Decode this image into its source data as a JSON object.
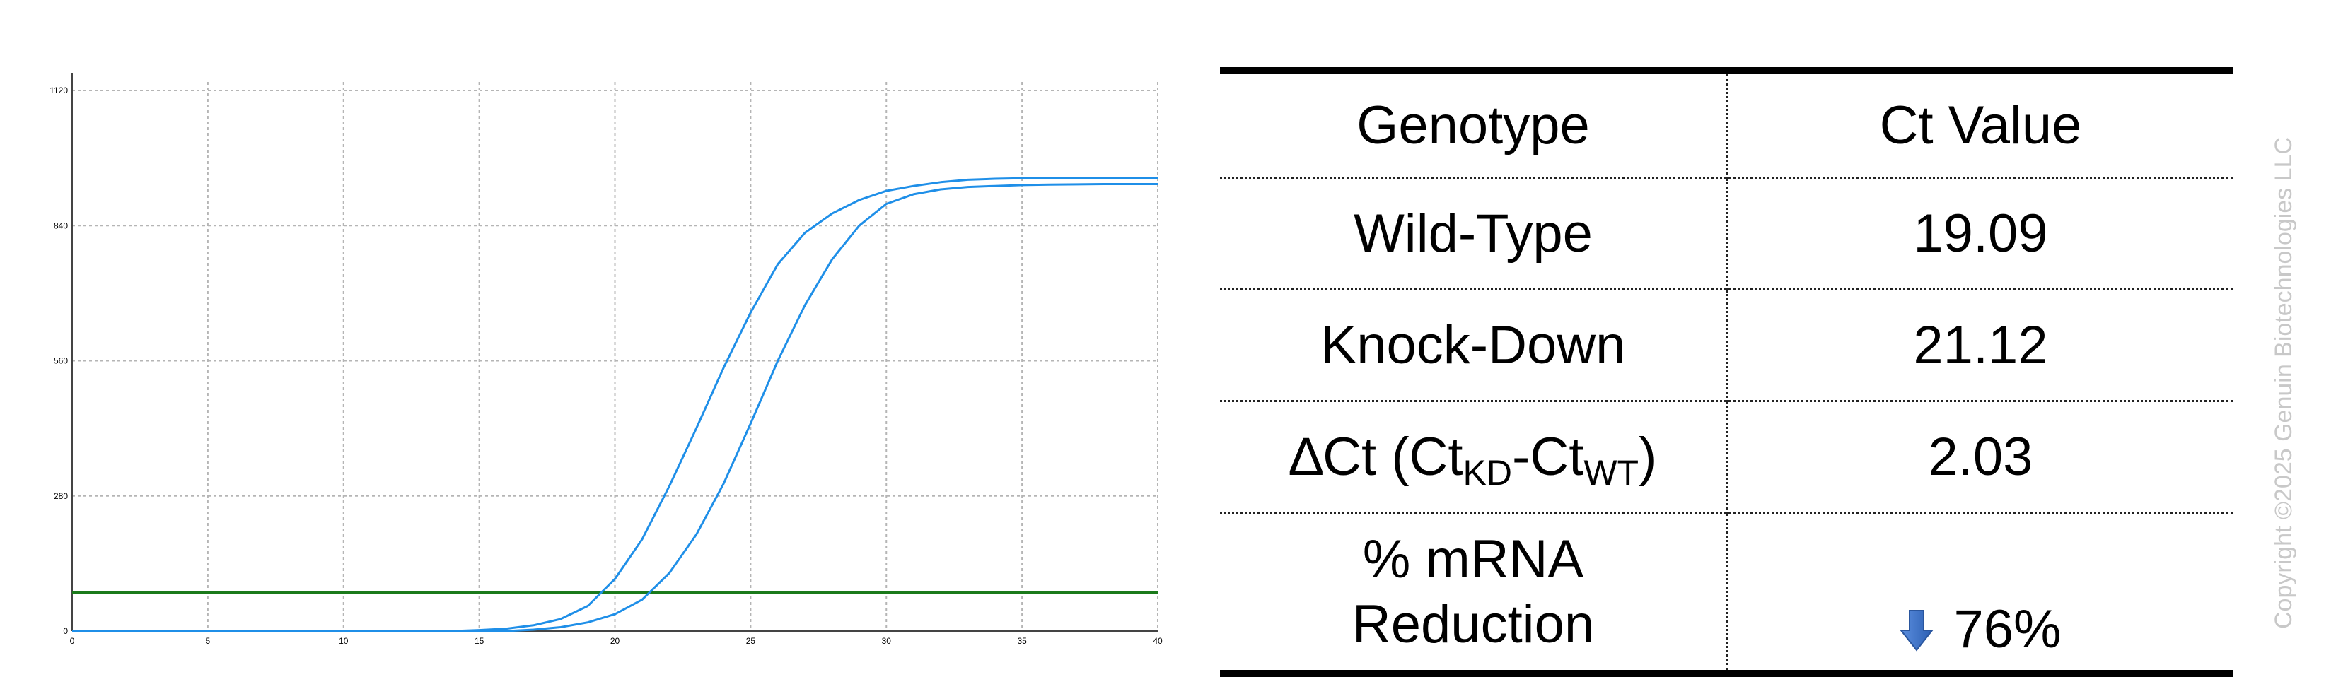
{
  "chart_data": {
    "type": "line",
    "xlim": [
      0,
      40
    ],
    "ylim": [
      0,
      1120
    ],
    "x_ticks": [
      "0",
      "5",
      "10",
      "15",
      "20",
      "25",
      "30",
      "35",
      "40"
    ],
    "y_ticks": [
      "0",
      "280",
      "560",
      "840",
      "1120"
    ],
    "grid": true,
    "threshold": 80,
    "series": [
      {
        "color": "#1f8fe8",
        "x": [
          0,
          14,
          15,
          16,
          17,
          18,
          19,
          20,
          21,
          22,
          23,
          24,
          25,
          26,
          27,
          28,
          29,
          30,
          31,
          32,
          33,
          34,
          35,
          36,
          40
        ],
        "y": [
          0,
          0,
          2,
          5,
          12,
          25,
          52,
          108,
          190,
          300,
          420,
          545,
          660,
          760,
          825,
          865,
          893,
          912,
          922,
          930,
          935,
          937,
          938,
          938,
          938
        ]
      },
      {
        "color": "#1f8fe8",
        "x": [
          0,
          16,
          17,
          18,
          19,
          20,
          21,
          22,
          23,
          24,
          25,
          26,
          27,
          28,
          29,
          30,
          31,
          32,
          33,
          34,
          35,
          36,
          38,
          40
        ],
        "y": [
          0,
          0,
          3,
          8,
          18,
          35,
          65,
          120,
          200,
          305,
          430,
          560,
          675,
          770,
          840,
          885,
          905,
          915,
          920,
          922,
          924,
          925,
          926,
          926
        ]
      }
    ]
  },
  "table": {
    "headers": [
      "Genotype",
      "Ct Value"
    ],
    "row_wt": {
      "label": "Wild-Type",
      "value": "19.09"
    },
    "row_kd": {
      "label": "Knock-Down",
      "value": "21.12"
    },
    "row_dct": {
      "delta": "∆Ct (Ct",
      "sub1": "KD",
      "mid": "-Ct",
      "sub2": "WT",
      "close": ")",
      "value": "2.03"
    },
    "row_mrna": {
      "label_line1": "% mRNA",
      "label_line2": "Reduction",
      "value": "76%",
      "icon": "arrow-down-icon"
    }
  },
  "colors": {
    "curve": "#1f8fe8",
    "threshold": "#1b7a1b",
    "arrow": "#3a6fc7"
  },
  "copyright": "Copyright ©2025 Genuin Biotechnologies LLC"
}
